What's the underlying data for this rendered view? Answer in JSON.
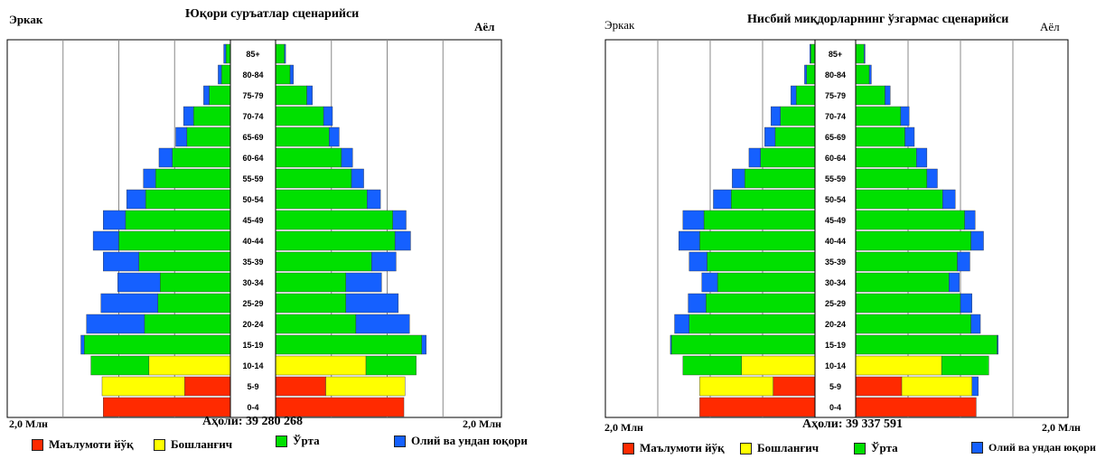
{
  "legend": [
    {
      "key": "none",
      "label": "Маълумоти йўқ",
      "color": "#ff2a00"
    },
    {
      "key": "primary",
      "label": "Бошланғич",
      "color": "#ffff00"
    },
    {
      "key": "secondary",
      "label": "Ўрта",
      "color": "#00e000"
    },
    {
      "key": "higher",
      "label": "Олий ва ундан юқори",
      "color": "#1560ff"
    }
  ],
  "chart_data": [
    {
      "type": "bar",
      "title": "Юқори суръатлар сценарийси",
      "left_label": "Эркак",
      "right_label": "Аёл",
      "scale_left": "2,0 Млн",
      "scale_right": "2,0 Млн",
      "population_label": "Аҳоли: 39 280 268",
      "xlim": [
        0,
        2.0
      ],
      "unit": "Млн",
      "categories": [
        "85+",
        "80-84",
        "75-79",
        "70-74",
        "65-69",
        "60-64",
        "55-59",
        "50-54",
        "45-49",
        "40-44",
        "35-39",
        "30-34",
        "25-29",
        "20-24",
        "15-19",
        "10-14",
        "5-9",
        "0-4"
      ],
      "male": [
        {
          "none": 0,
          "primary": 0,
          "secondary": 0.04,
          "higher": 0.02
        },
        {
          "none": 0,
          "primary": 0,
          "secondary": 0.08,
          "higher": 0.03
        },
        {
          "none": 0,
          "primary": 0,
          "secondary": 0.19,
          "higher": 0.05
        },
        {
          "none": 0,
          "primary": 0,
          "secondary": 0.33,
          "higher": 0.09
        },
        {
          "none": 0,
          "primary": 0,
          "secondary": 0.39,
          "higher": 0.1
        },
        {
          "none": 0,
          "primary": 0,
          "secondary": 0.52,
          "higher": 0.12
        },
        {
          "none": 0,
          "primary": 0,
          "secondary": 0.67,
          "higher": 0.11
        },
        {
          "none": 0,
          "primary": 0,
          "secondary": 0.76,
          "higher": 0.17
        },
        {
          "none": 0,
          "primary": 0,
          "secondary": 0.94,
          "higher": 0.2
        },
        {
          "none": 0,
          "primary": 0,
          "secondary": 1.0,
          "higher": 0.23
        },
        {
          "none": 0,
          "primary": 0,
          "secondary": 0.82,
          "higher": 0.32
        },
        {
          "none": 0,
          "primary": 0,
          "secondary": 0.63,
          "higher": 0.38
        },
        {
          "none": 0,
          "primary": 0,
          "secondary": 0.65,
          "higher": 0.51
        },
        {
          "none": 0,
          "primary": 0,
          "secondary": 0.77,
          "higher": 0.52
        },
        {
          "none": 0,
          "primary": 0,
          "secondary": 1.31,
          "higher": 0.03
        },
        {
          "none": 0,
          "primary": 0.73,
          "secondary": 0.52,
          "higher": 0
        },
        {
          "none": 0.41,
          "primary": 0.74,
          "secondary": 0,
          "higher": 0
        },
        {
          "none": 1.14,
          "primary": 0,
          "secondary": 0,
          "higher": 0
        }
      ],
      "female": [
        {
          "none": 0,
          "primary": 0,
          "secondary": 0.08,
          "higher": 0.01
        },
        {
          "none": 0,
          "primary": 0,
          "secondary": 0.13,
          "higher": 0.03
        },
        {
          "none": 0,
          "primary": 0,
          "secondary": 0.28,
          "higher": 0.05
        },
        {
          "none": 0,
          "primary": 0,
          "secondary": 0.43,
          "higher": 0.08
        },
        {
          "none": 0,
          "primary": 0,
          "secondary": 0.48,
          "higher": 0.09
        },
        {
          "none": 0,
          "primary": 0,
          "secondary": 0.59,
          "higher": 0.1
        },
        {
          "none": 0,
          "primary": 0,
          "secondary": 0.68,
          "higher": 0.11
        },
        {
          "none": 0,
          "primary": 0,
          "secondary": 0.82,
          "higher": 0.12
        },
        {
          "none": 0,
          "primary": 0,
          "secondary": 1.05,
          "higher": 0.12
        },
        {
          "none": 0,
          "primary": 0,
          "secondary": 1.07,
          "higher": 0.14
        },
        {
          "none": 0,
          "primary": 0,
          "secondary": 0.86,
          "higher": 0.22
        },
        {
          "none": 0,
          "primary": 0,
          "secondary": 0.63,
          "higher": 0.32
        },
        {
          "none": 0,
          "primary": 0,
          "secondary": 0.63,
          "higher": 0.47
        },
        {
          "none": 0,
          "primary": 0,
          "secondary": 0.72,
          "higher": 0.48
        },
        {
          "none": 0,
          "primary": 0,
          "secondary": 1.31,
          "higher": 0.04
        },
        {
          "none": 0,
          "primary": 0.81,
          "secondary": 0.45,
          "higher": 0
        },
        {
          "none": 0.45,
          "primary": 0.71,
          "secondary": 0,
          "higher": 0
        },
        {
          "none": 1.15,
          "primary": 0,
          "secondary": 0,
          "higher": 0
        }
      ]
    },
    {
      "type": "bar",
      "title": "Нисбий миқдорларнинг ўзгармас сценарийси",
      "left_label": "Эркак",
      "right_label": "Аёл",
      "scale_left": "2,0 Млн",
      "scale_right": "2,0 Млн",
      "population_label": "Аҳоли: 39 337 591",
      "xlim": [
        0,
        2.0
      ],
      "unit": "Млн",
      "categories": [
        "85+",
        "80-84",
        "75-79",
        "70-74",
        "65-69",
        "60-64",
        "55-59",
        "50-54",
        "45-49",
        "40-44",
        "35-39",
        "30-34",
        "25-29",
        "20-24",
        "15-19",
        "10-14",
        "5-9",
        "0-4"
      ],
      "male": [
        {
          "none": 0,
          "primary": 0,
          "secondary": 0.04,
          "higher": 0.01
        },
        {
          "none": 0,
          "primary": 0,
          "secondary": 0.08,
          "higher": 0.02
        },
        {
          "none": 0,
          "primary": 0,
          "secondary": 0.18,
          "higher": 0.05
        },
        {
          "none": 0,
          "primary": 0,
          "secondary": 0.33,
          "higher": 0.09
        },
        {
          "none": 0,
          "primary": 0,
          "secondary": 0.38,
          "higher": 0.1
        },
        {
          "none": 0,
          "primary": 0,
          "secondary": 0.52,
          "higher": 0.11
        },
        {
          "none": 0,
          "primary": 0,
          "secondary": 0.67,
          "higher": 0.12
        },
        {
          "none": 0,
          "primary": 0,
          "secondary": 0.8,
          "higher": 0.17
        },
        {
          "none": 0,
          "primary": 0,
          "secondary": 1.06,
          "higher": 0.2
        },
        {
          "none": 0,
          "primary": 0,
          "secondary": 1.1,
          "higher": 0.2
        },
        {
          "none": 0,
          "primary": 0,
          "secondary": 1.03,
          "higher": 0.17
        },
        {
          "none": 0,
          "primary": 0,
          "secondary": 0.93,
          "higher": 0.15
        },
        {
          "none": 0,
          "primary": 0,
          "secondary": 1.04,
          "higher": 0.17
        },
        {
          "none": 0,
          "primary": 0,
          "secondary": 1.2,
          "higher": 0.14
        },
        {
          "none": 0,
          "primary": 0,
          "secondary": 1.37,
          "higher": 0.01
        },
        {
          "none": 0,
          "primary": 0.7,
          "secondary": 0.56,
          "higher": 0
        },
        {
          "none": 0.4,
          "primary": 0.7,
          "secondary": 0,
          "higher": 0
        },
        {
          "none": 1.1,
          "primary": 0,
          "secondary": 0,
          "higher": 0
        }
      ],
      "female": [
        {
          "none": 0,
          "primary": 0,
          "secondary": 0.08,
          "higher": 0.01
        },
        {
          "none": 0,
          "primary": 0,
          "secondary": 0.13,
          "higher": 0.02
        },
        {
          "none": 0,
          "primary": 0,
          "secondary": 0.28,
          "higher": 0.05
        },
        {
          "none": 0,
          "primary": 0,
          "secondary": 0.43,
          "higher": 0.08
        },
        {
          "none": 0,
          "primary": 0,
          "secondary": 0.47,
          "higher": 0.09
        },
        {
          "none": 0,
          "primary": 0,
          "secondary": 0.58,
          "higher": 0.1
        },
        {
          "none": 0,
          "primary": 0,
          "secondary": 0.68,
          "higher": 0.1
        },
        {
          "none": 0,
          "primary": 0,
          "secondary": 0.83,
          "higher": 0.12
        },
        {
          "none": 0,
          "primary": 0,
          "secondary": 1.04,
          "higher": 0.1
        },
        {
          "none": 0,
          "primary": 0,
          "secondary": 1.1,
          "higher": 0.12
        },
        {
          "none": 0,
          "primary": 0,
          "secondary": 0.97,
          "higher": 0.12
        },
        {
          "none": 0,
          "primary": 0,
          "secondary": 0.89,
          "higher": 0.1
        },
        {
          "none": 0,
          "primary": 0,
          "secondary": 1.0,
          "higher": 0.11
        },
        {
          "none": 0,
          "primary": 0,
          "secondary": 1.1,
          "higher": 0.09
        },
        {
          "none": 0,
          "primary": 0,
          "secondary": 1.35,
          "higher": 0.01
        },
        {
          "none": 0,
          "primary": 0.82,
          "secondary": 0.45,
          "higher": 0
        },
        {
          "none": 0.44,
          "primary": 0.67,
          "secondary": 0,
          "higher": 0.06
        },
        {
          "none": 1.15,
          "primary": 0,
          "secondary": 0,
          "higher": 0
        }
      ]
    }
  ]
}
